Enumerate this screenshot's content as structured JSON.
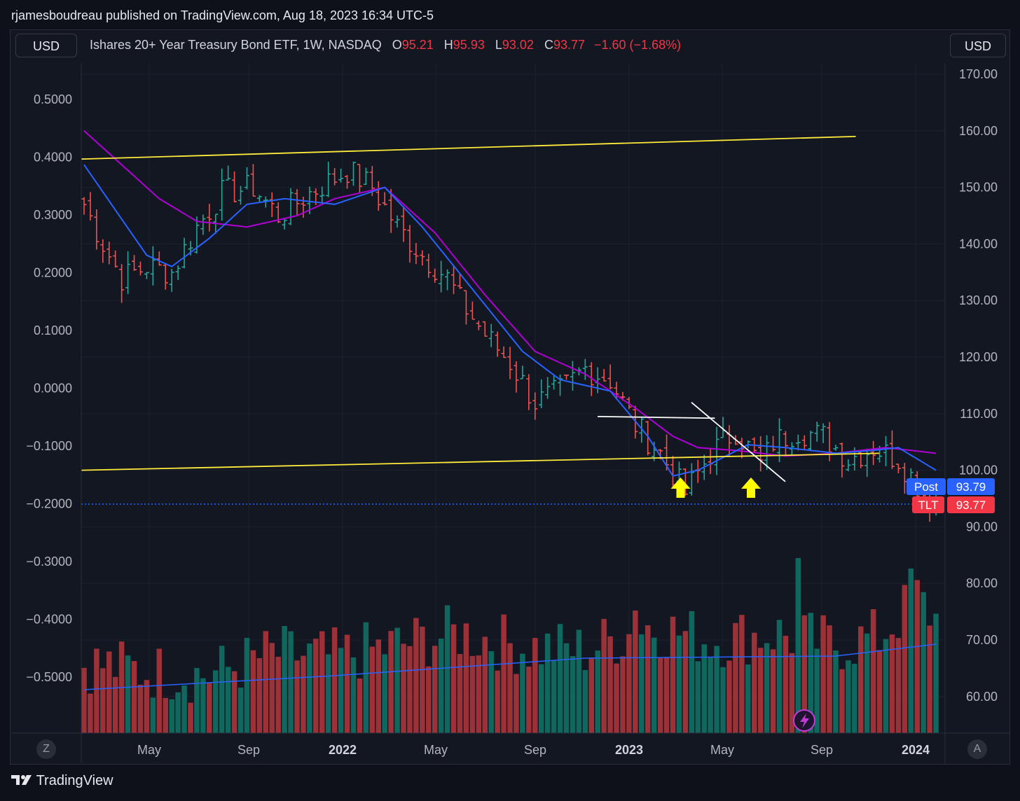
{
  "header": {
    "published": "rjamesboudreau published on TradingView.com, Aug 18, 2023 16:34 UTC-5"
  },
  "left_currency": "USD",
  "right_currency": "USD",
  "legend": {
    "title": "Ishares 20+ Year Treasury Bond ETF, 1W, NASDAQ",
    "o_label": "O",
    "o_value": "95.21",
    "h_label": "H",
    "h_value": "95.93",
    "l_label": "L",
    "l_value": "93.02",
    "c_label": "C",
    "c_value": "93.77",
    "change": "−1.60 (−1.68%)"
  },
  "badges": {
    "post_label": "Post",
    "post_value": "93.79",
    "tlt_label": "TLT",
    "tlt_value": "93.77"
  },
  "footer": {
    "brand": "TradingView"
  },
  "corner": {
    "left": "Z",
    "right": "A"
  },
  "colors": {
    "up": "#26a69a",
    "down": "#ef5350",
    "ma_fast": "#2962ff",
    "ma_slow": "#b000d6",
    "trend": "#ffeb3b",
    "badge_post": "#2962ff",
    "badge_tlt": "#f23645"
  },
  "chart_data": {
    "type": "ohlc",
    "symbol": "TLT",
    "interval": "1W",
    "right_axis": {
      "min": 55,
      "max": 173,
      "ticks": [
        "170.00",
        "160.00",
        "150.00",
        "140.00",
        "130.00",
        "120.00",
        "110.00",
        "100.00",
        "90.00",
        "80.00",
        "70.00",
        "60.00"
      ]
    },
    "left_axis": {
      "ticks": [
        "0.5000",
        "0.4000",
        "0.3000",
        "0.2000",
        "0.1000",
        "0.0000",
        "−0.1000",
        "−0.2000",
        "−0.3000",
        "−0.4000",
        "−0.5000"
      ]
    },
    "x_axis": {
      "ticks": [
        "May",
        "Sep",
        "2022",
        "May",
        "Sep",
        "2023",
        "May",
        "Sep",
        "2024"
      ],
      "bold": [
        "2022",
        "2023",
        "2024"
      ]
    },
    "close_anchors": [
      [
        0,
        147
      ],
      [
        3,
        140
      ],
      [
        6,
        134
      ],
      [
        10,
        136
      ],
      [
        14,
        135
      ],
      [
        18,
        143
      ],
      [
        22,
        149
      ],
      [
        27,
        150
      ],
      [
        31,
        145
      ],
      [
        36,
        149
      ],
      [
        42,
        153
      ],
      [
        46,
        150
      ],
      [
        50,
        143
      ],
      [
        54,
        138
      ],
      [
        58,
        134
      ],
      [
        60,
        130
      ],
      [
        64,
        124
      ],
      [
        68,
        119
      ],
      [
        72,
        112
      ],
      [
        76,
        114
      ],
      [
        80,
        118
      ],
      [
        84,
        116
      ],
      [
        88,
        108
      ],
      [
        92,
        103
      ],
      [
        96,
        96
      ],
      [
        100,
        103
      ],
      [
        104,
        107
      ],
      [
        108,
        101
      ],
      [
        110,
        105
      ],
      [
        114,
        107
      ],
      [
        118,
        106
      ],
      [
        122,
        102
      ],
      [
        126,
        104
      ],
      [
        130,
        102
      ],
      [
        134,
        96
      ],
      [
        136,
        94
      ]
    ],
    "volume_anchors": [
      [
        0,
        0.35
      ],
      [
        10,
        0.3
      ],
      [
        20,
        0.28
      ],
      [
        30,
        0.4
      ],
      [
        40,
        0.38
      ],
      [
        50,
        0.45
      ],
      [
        60,
        0.52
      ],
      [
        70,
        0.44
      ],
      [
        80,
        0.42
      ],
      [
        90,
        0.56
      ],
      [
        100,
        0.48
      ],
      [
        110,
        0.52
      ],
      [
        120,
        0.45
      ],
      [
        127,
        0.5
      ],
      [
        133,
        0.72
      ],
      [
        136,
        0.6
      ]
    ],
    "ma_slow_anchors": [
      [
        0,
        160
      ],
      [
        6,
        154
      ],
      [
        12,
        148
      ],
      [
        18,
        144
      ],
      [
        26,
        143
      ],
      [
        34,
        145
      ],
      [
        40,
        148
      ],
      [
        48,
        150
      ],
      [
        56,
        142
      ],
      [
        64,
        131
      ],
      [
        72,
        121
      ],
      [
        80,
        117
      ],
      [
        88,
        111
      ],
      [
        94,
        106
      ],
      [
        98,
        104
      ],
      [
        104,
        103.5
      ],
      [
        112,
        102.5
      ],
      [
        120,
        103
      ],
      [
        128,
        104
      ],
      [
        136,
        103
      ]
    ],
    "ma_fast_anchors": [
      [
        0,
        154
      ],
      [
        5,
        146
      ],
      [
        10,
        138
      ],
      [
        14,
        136
      ],
      [
        20,
        141
      ],
      [
        26,
        147
      ],
      [
        32,
        148
      ],
      [
        40,
        147
      ],
      [
        48,
        150
      ],
      [
        54,
        143
      ],
      [
        62,
        132
      ],
      [
        70,
        121
      ],
      [
        76,
        116
      ],
      [
        84,
        114
      ],
      [
        90,
        106
      ],
      [
        94,
        99
      ],
      [
        98,
        100
      ],
      [
        106,
        104.5
      ],
      [
        112,
        104
      ],
      [
        120,
        103
      ],
      [
        126,
        103.5
      ],
      [
        130,
        104
      ],
      [
        136,
        100
      ]
    ],
    "trend_lines": [
      {
        "color": "#ffeb3b",
        "from": [
          "2021-02",
          155
        ],
        "to": [
          "2023-11",
          159
        ]
      },
      {
        "color": "#ffeb3b",
        "from": [
          "2021-02",
          100
        ],
        "to": [
          "2023-12",
          103
        ]
      },
      {
        "color": "#ffffff",
        "from": [
          "2022-12",
          109.5
        ],
        "to": [
          "2023-05",
          109.2
        ]
      },
      {
        "color": "#ffffff",
        "from": [
          "2023-04",
          112
        ],
        "to": [
          "2023-08",
          98
        ]
      }
    ],
    "markers": [
      {
        "type": "up-arrow",
        "at": "2023-03"
      },
      {
        "type": "up-arrow",
        "at": "2023-06"
      }
    ],
    "last": {
      "post": 93.79,
      "close": 93.77
    }
  }
}
